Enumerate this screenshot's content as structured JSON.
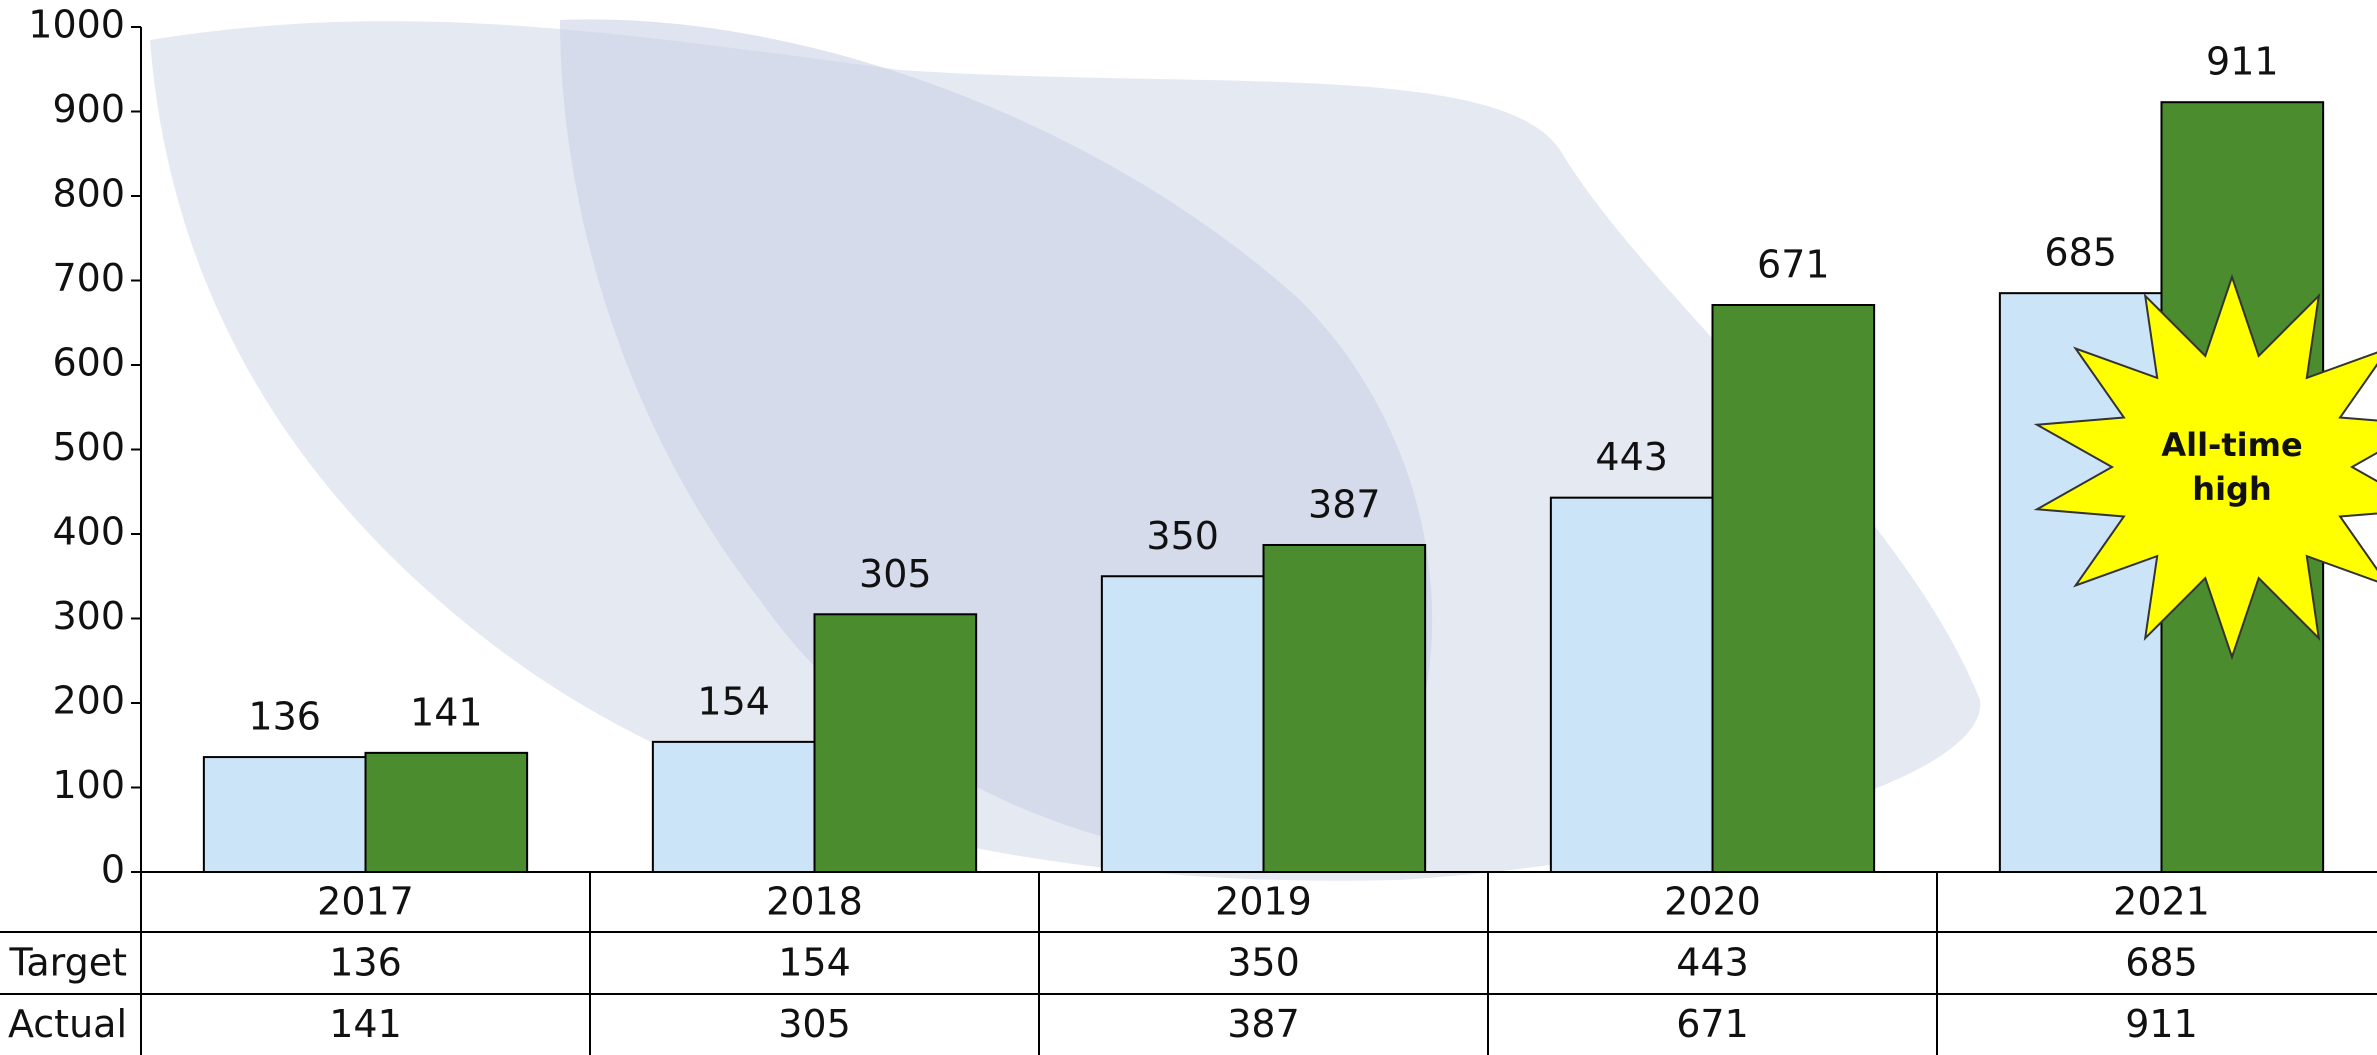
{
  "chart_data": {
    "type": "bar",
    "categories": [
      "2017",
      "2018",
      "2019",
      "2020",
      "2021"
    ],
    "series": [
      {
        "name": "Target",
        "color": "#cce4f7",
        "values": [
          136,
          154,
          350,
          443,
          685
        ]
      },
      {
        "name": "Actual",
        "color": "#4a8c2e",
        "values": [
          141,
          305,
          387,
          671,
          911
        ]
      }
    ],
    "ylim": [
      0,
      1000
    ],
    "yticks": [
      0,
      100,
      200,
      300,
      400,
      500,
      600,
      700,
      800,
      900,
      1000
    ],
    "annotation": "All-time high",
    "data_table": true
  }
}
